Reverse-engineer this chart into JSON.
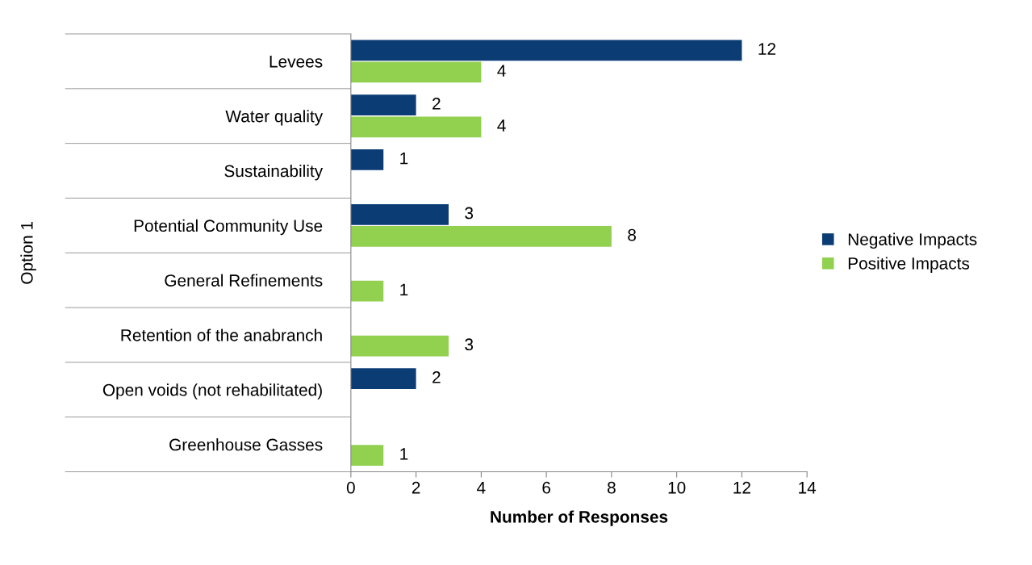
{
  "chart_data": {
    "type": "bar",
    "orientation": "horizontal",
    "xlabel": "Number of Responses",
    "ylabel": "Option 1",
    "categories": [
      "Levees",
      "Water quality",
      "Sustainability",
      "Potential Community Use",
      "General Refinements",
      "Retention of the anabranch",
      "Open voids (not rehabilitated)",
      "Greenhouse Gasses"
    ],
    "series": [
      {
        "name": "Negative Impacts",
        "color": "#0b3d74",
        "values": [
          12,
          2,
          1,
          3,
          null,
          null,
          2,
          null
        ]
      },
      {
        "name": "Positive Impacts",
        "color": "#92d050",
        "values": [
          4,
          4,
          null,
          8,
          1,
          3,
          null,
          1
        ]
      }
    ],
    "xlim": [
      0,
      14
    ],
    "xticks": [
      0,
      2,
      4,
      6,
      8,
      10,
      12,
      14
    ],
    "data_labels": true,
    "legend": "right",
    "grid": false
  }
}
